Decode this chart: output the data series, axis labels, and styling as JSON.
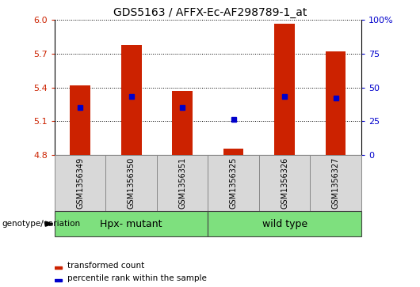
{
  "title": "GDS5163 / AFFX-Ec-AF298789-1_at",
  "samples": [
    "GSM1356349",
    "GSM1356350",
    "GSM1356351",
    "GSM1356325",
    "GSM1356326",
    "GSM1356327"
  ],
  "bar_tops": [
    5.42,
    5.78,
    5.37,
    4.855,
    5.97,
    5.72
  ],
  "bar_base": 4.8,
  "blue_dots": [
    5.22,
    5.32,
    5.22,
    5.12,
    5.32,
    5.31
  ],
  "ylim": [
    4.8,
    6.0
  ],
  "yticks_left": [
    4.8,
    5.1,
    5.4,
    5.7,
    6.0
  ],
  "yticks_right_vals": [
    0,
    25,
    50,
    75,
    100
  ],
  "yticks_right_labels": [
    "0",
    "25",
    "50",
    "75",
    "100%"
  ],
  "groups": [
    {
      "label": "Hpx- mutant",
      "start": 0,
      "end": 3,
      "color": "#7EE07E"
    },
    {
      "label": "wild type",
      "start": 3,
      "end": 6,
      "color": "#7EE07E"
    }
  ],
  "group_label": "genotype/variation",
  "bar_color": "#CC2200",
  "dot_color": "#0000CC",
  "grid_color": "#000000",
  "bg_color": "#d8d8d8",
  "legend_red_label": "transformed count",
  "legend_blue_label": "percentile rank within the sample",
  "left_tick_color": "#CC2200",
  "right_tick_color": "#0000CC",
  "title_fontsize": 10,
  "tick_fontsize": 8,
  "sample_fontsize": 7,
  "group_fontsize": 9
}
